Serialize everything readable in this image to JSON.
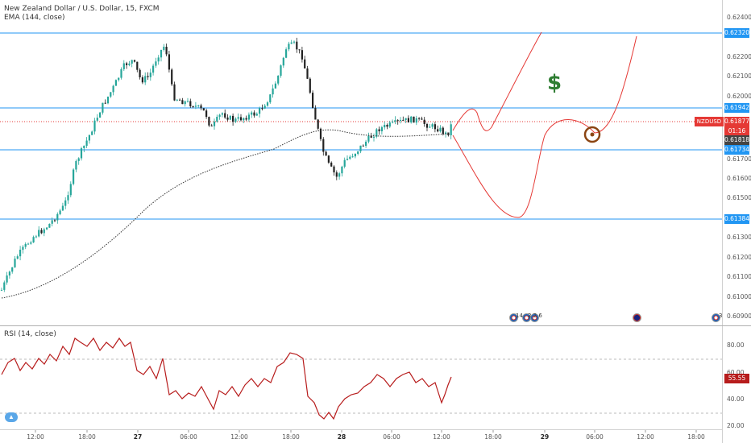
{
  "header": {
    "title": "New Zealand Dollar / U.S. Dollar, 15, FXCM",
    "ema_label": "EMA (144, close)",
    "rsi_label": "RSI (14, close)"
  },
  "price_axis": {
    "labels": [
      "0.62400",
      "0.62200",
      "0.62100",
      "0.62000",
      "0.61700",
      "0.61600",
      "0.61500",
      "0.61300",
      "0.61200",
      "0.61100",
      "0.61000",
      "0.60900"
    ]
  },
  "rsi_axis": {
    "labels": [
      "80.00",
      "60.00",
      "40.00",
      "20.00"
    ],
    "current": "55.55"
  },
  "levels": [
    {
      "value": "0.62320",
      "color": "#2196f3"
    },
    {
      "value": "0.61942",
      "color": "#2196f3"
    },
    {
      "value": "0.61734",
      "color": "#2196f3"
    },
    {
      "value": "0.61384",
      "color": "#2196f3"
    }
  ],
  "current": {
    "symbol": "NZDUSD",
    "price": "0.61877",
    "countdown": "01:16",
    "ema_value": "0.61818",
    "color": "#e53935"
  },
  "time_axis": {
    "labels": [
      {
        "text": "12:00",
        "bold": false
      },
      {
        "text": "18:00",
        "bold": false
      },
      {
        "text": "27",
        "bold": true
      },
      {
        "text": "06:00",
        "bold": false
      },
      {
        "text": "12:00",
        "bold": false
      },
      {
        "text": "18:00",
        "bold": false
      },
      {
        "text": "28",
        "bold": true
      },
      {
        "text": "06:00",
        "bold": false
      },
      {
        "text": "12:00",
        "bold": false
      },
      {
        "text": "18:00",
        "bold": false
      },
      {
        "text": "29",
        "bold": true
      },
      {
        "text": "06:00",
        "bold": false
      },
      {
        "text": "12:00",
        "bold": false
      },
      {
        "text": "18:00",
        "bold": false
      }
    ]
  },
  "events": {
    "label_a": "14",
    "label_b": "2 2 6",
    "label_c": "3"
  },
  "annotations": {
    "dollar_sign": "$"
  },
  "colors": {
    "candle_up": "#26a69a",
    "candle_down": "#222222",
    "projection": "#e53935",
    "rsi_line": "#b71c1c",
    "target_icon": "#8b4513"
  }
}
